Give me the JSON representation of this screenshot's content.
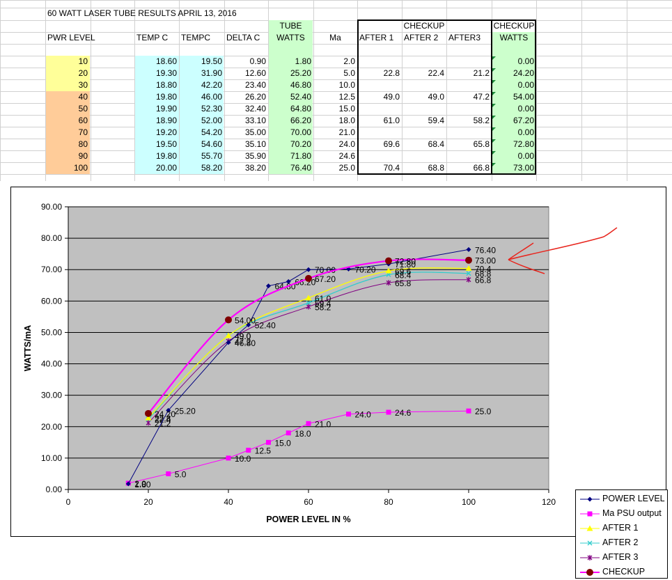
{
  "sheet": {
    "title": "60 WATT LASER TUBE RESULTS APRIL 13, 2016",
    "headers": {
      "tube": "TUBE",
      "checkup_top": "CHECKUP",
      "checkup_right_top": "CHECKUP",
      "pwr_level": "PWR LEVEL",
      "temp_c": "TEMP C",
      "tempc": "TEMPC",
      "delta_c": "DELTA C",
      "watts": "WATTS",
      "ma": "Ma",
      "after1": "AFTER 1",
      "after2": "AFTER 2",
      "after3": "AFTER3",
      "checkup_watts": "WATTS"
    },
    "rows": [
      {
        "pwr": "10",
        "temp1": "18.60",
        "temp2": "19.50",
        "delta": "0.90",
        "watts": "1.80",
        "ma": "2.0",
        "a1": "",
        "a2": "",
        "a3": "",
        "chk": "0.00"
      },
      {
        "pwr": "20",
        "temp1": "19.30",
        "temp2": "31.90",
        "delta": "12.60",
        "watts": "25.20",
        "ma": "5.0",
        "a1": "22.8",
        "a2": "22.4",
        "a3": "21.2",
        "chk": "24.20"
      },
      {
        "pwr": "30",
        "temp1": "18.80",
        "temp2": "42.20",
        "delta": "23.40",
        "watts": "46.80",
        "ma": "10.0",
        "a1": "",
        "a2": "",
        "a3": "",
        "chk": "0.00"
      },
      {
        "pwr": "40",
        "temp1": "19.80",
        "temp2": "46.00",
        "delta": "26.20",
        "watts": "52.40",
        "ma": "12.5",
        "a1": "49.0",
        "a2": "49.0",
        "a3": "47.2",
        "chk": "54.00"
      },
      {
        "pwr": "50",
        "temp1": "19.90",
        "temp2": "52.30",
        "delta": "32.40",
        "watts": "64.80",
        "ma": "15.0",
        "a1": "",
        "a2": "",
        "a3": "",
        "chk": "0.00"
      },
      {
        "pwr": "60",
        "temp1": "18.90",
        "temp2": "52.00",
        "delta": "33.10",
        "watts": "66.20",
        "ma": "18.0",
        "a1": "61.0",
        "a2": "59.4",
        "a3": "58.2",
        "chk": "67.20"
      },
      {
        "pwr": "70",
        "temp1": "19.20",
        "temp2": "54.20",
        "delta": "35.00",
        "watts": "70.00",
        "ma": "21.0",
        "a1": "",
        "a2": "",
        "a3": "",
        "chk": "0.00"
      },
      {
        "pwr": "80",
        "temp1": "19.50",
        "temp2": "54.60",
        "delta": "35.10",
        "watts": "70.20",
        "ma": "24.0",
        "a1": "69.6",
        "a2": "68.4",
        "a3": "65.8",
        "chk": "72.80"
      },
      {
        "pwr": "90",
        "temp1": "19.80",
        "temp2": "55.70",
        "delta": "35.90",
        "watts": "71.80",
        "ma": "24.6",
        "a1": "",
        "a2": "",
        "a3": "",
        "chk": "0.00"
      },
      {
        "pwr": "100",
        "temp1": "20.00",
        "temp2": "58.20",
        "delta": "38.20",
        "watts": "76.40",
        "ma": "25.0",
        "a1": "70.4",
        "a2": "68.8",
        "a3": "66.8",
        "chk": "73.00"
      }
    ]
  },
  "colors": {
    "pwr_yellow": "#ffff99",
    "pwr_orange": "#ffcc99",
    "temp_cyan": "#ccffff",
    "watts_green": "#ccffcc",
    "plot_bg": "#c0c0c0",
    "power_level": "#000080",
    "ma": "#ff00ff",
    "after1": "#ffff00",
    "after2": "#33cccc",
    "after3": "#800080",
    "checkup_line": "#ff00ff",
    "checkup_marker": "#800000",
    "annotation": "#e8251d"
  },
  "chart_data": {
    "type": "line",
    "title": "",
    "xlabel": "POWER LEVEL IN %",
    "ylabel": "WATTS/mA",
    "xlim": [
      0,
      120
    ],
    "ylim": [
      0,
      90
    ],
    "x_ticks": [
      "0",
      "20",
      "40",
      "60",
      "80",
      "100",
      "120"
    ],
    "y_ticks": [
      "0.00",
      "10.00",
      "20.00",
      "30.00",
      "40.00",
      "50.00",
      "60.00",
      "70.00",
      "80.00",
      "90.00"
    ],
    "grid": "horizontal",
    "legend_position": "right",
    "series": [
      {
        "name": "POWER LEVEL",
        "color_key": "power_level",
        "marker": "diamond",
        "smooth": false,
        "x": [
          15,
          25,
          40,
          45,
          50,
          55,
          60,
          70,
          80,
          100
        ],
        "y": [
          1.8,
          25.2,
          46.8,
          52.4,
          64.8,
          66.2,
          70.0,
          70.2,
          71.8,
          76.4
        ],
        "labels": [
          "1.80",
          "25.20",
          "46.80",
          "52.40",
          "64.80",
          "66.20",
          "70.00",
          "70.20",
          "71.80",
          "76.40"
        ]
      },
      {
        "name": "Ma PSU output",
        "color_key": "ma",
        "marker": "square",
        "smooth": false,
        "x": [
          15,
          25,
          40,
          45,
          50,
          55,
          60,
          70,
          80,
          100
        ],
        "y": [
          2.0,
          5.0,
          10.0,
          12.5,
          15.0,
          18.0,
          21.0,
          24.0,
          24.6,
          25.0
        ],
        "labels": [
          "2.0",
          "5.0",
          "10.0",
          "12.5",
          "15.0",
          "18.0",
          "21.0",
          "24.0",
          "24.6",
          "25.0"
        ]
      },
      {
        "name": "AFTER 1",
        "color_key": "after1",
        "marker": "triangle",
        "smooth": true,
        "x": [
          20,
          40,
          60,
          80,
          100
        ],
        "y": [
          22.8,
          49.0,
          61.0,
          69.6,
          70.4
        ],
        "labels": [
          "22.8",
          "49.0",
          "61.0",
          "69.6",
          "70.4"
        ]
      },
      {
        "name": "AFTER 2",
        "color_key": "after2",
        "marker": "x",
        "smooth": true,
        "x": [
          20,
          40,
          60,
          80,
          100
        ],
        "y": [
          22.4,
          49.0,
          59.4,
          68.4,
          68.8
        ],
        "labels": [
          "22.4",
          "49.0",
          "59.4",
          "68.4",
          "68.8"
        ]
      },
      {
        "name": "AFTER 3",
        "color_key": "after3",
        "marker": "star",
        "smooth": true,
        "x": [
          20,
          40,
          60,
          80,
          100
        ],
        "y": [
          21.2,
          47.2,
          58.2,
          65.8,
          66.8
        ],
        "labels": [
          "21.2",
          "47.2",
          "58.2",
          "65.8",
          "66.8"
        ]
      },
      {
        "name": "CHECKUP",
        "color_key": "checkup_line",
        "marker": "circle",
        "smooth": true,
        "x": [
          20,
          40,
          60,
          80,
          100
        ],
        "y": [
          24.2,
          54.0,
          67.2,
          72.8,
          73.0
        ],
        "labels": [
          "24.20",
          "54.00",
          "67.20",
          "72.80",
          "73.00"
        ]
      }
    ]
  }
}
